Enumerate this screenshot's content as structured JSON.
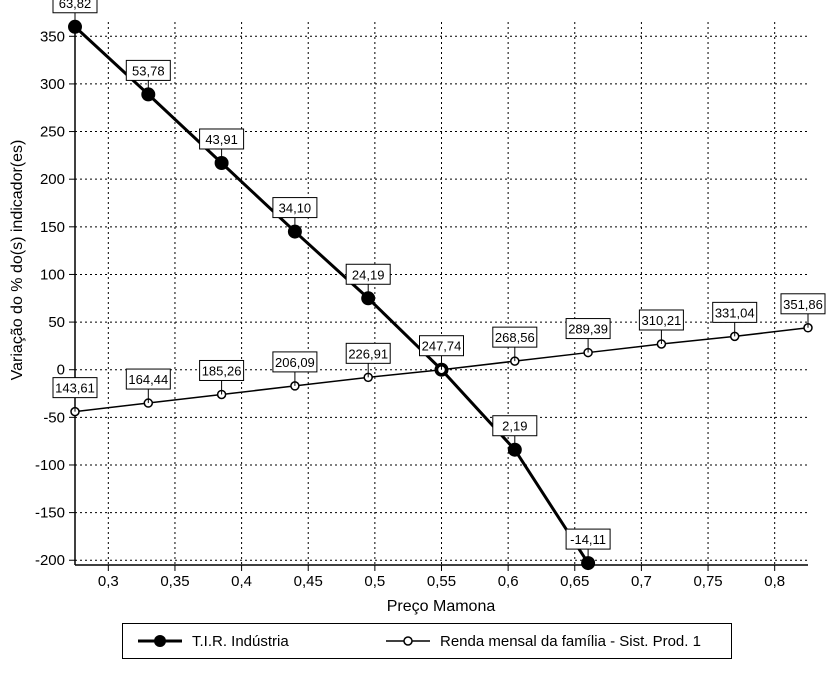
{
  "chart_data": {
    "type": "line",
    "title": "",
    "xlabel": "Preço Mamona",
    "ylabel": "Variação do % do(s) indicador(es)",
    "xlim": [
      0.275,
      0.825
    ],
    "ylim": [
      -205,
      365
    ],
    "x_ticks": [
      0.3,
      0.35,
      0.4,
      0.45,
      0.5,
      0.55,
      0.6,
      0.65,
      0.7,
      0.75,
      0.8
    ],
    "x_tick_labels": [
      "0,3",
      "0,35",
      "0,4",
      "0,45",
      "0,5",
      "0,55",
      "0,6",
      "0,65",
      "0,7",
      "0,75",
      "0,8"
    ],
    "y_ticks": [
      -200,
      -150,
      -100,
      -50,
      0,
      50,
      100,
      150,
      200,
      250,
      300,
      350
    ],
    "y_tick_labels": [
      "-200",
      "-150",
      "-100",
      "-50",
      "0",
      "50",
      "100",
      "150",
      "200",
      "250",
      "300",
      "350"
    ],
    "grid": true,
    "legend_position": "bottom",
    "series": [
      {
        "name": "T.I.R. Indústria",
        "marker": "filled-circle",
        "color": "#000000",
        "x": [
          0.275,
          0.33,
          0.385,
          0.44,
          0.495,
          0.55,
          0.605,
          0.66
        ],
        "y": [
          360,
          289,
          217,
          145,
          75,
          0,
          -84,
          -203
        ],
        "labels": [
          "63,82",
          "53,78",
          "43,91",
          "34,10",
          "24,19",
          "247,74",
          "2,19",
          "-14,11"
        ],
        "label_show": [
          true,
          true,
          true,
          true,
          true,
          false,
          true,
          true
        ]
      },
      {
        "name": "Renda mensal da família - Sist. Prod. 1",
        "marker": "open-circle",
        "color": "#000000",
        "x": [
          0.275,
          0.33,
          0.385,
          0.44,
          0.495,
          0.55,
          0.605,
          0.66,
          0.715,
          0.77,
          0.825
        ],
        "y": [
          -44,
          -35,
          -26,
          -17,
          -8,
          0,
          9,
          18,
          27,
          35,
          44
        ],
        "labels": [
          "143,61",
          "164,44",
          "185,26",
          "206,09",
          "226,91",
          "247,74",
          "268,56",
          "289,39",
          "310,21",
          "331,04",
          "351,86"
        ],
        "label_show": [
          true,
          true,
          true,
          true,
          true,
          true,
          true,
          true,
          true,
          true,
          true
        ]
      }
    ]
  }
}
